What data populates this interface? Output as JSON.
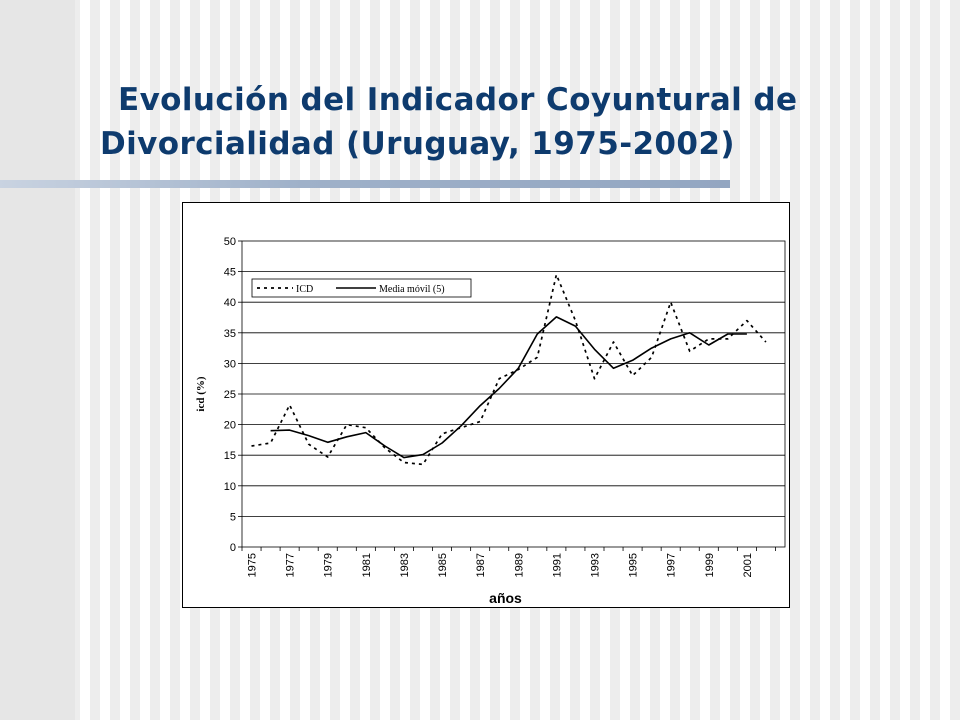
{
  "slide": {
    "title_line1": "Evolución del Indicador Coyuntural de",
    "title_line2": "Divorcialidad (Uruguay, 1975-2002)",
    "title_color": "#0e3b6e"
  },
  "chart_data": {
    "type": "line",
    "xlabel": "años",
    "ylabel": "icd (%)",
    "ylim": [
      0,
      50
    ],
    "yticks": [
      0,
      5,
      10,
      15,
      20,
      25,
      30,
      35,
      40,
      45,
      50
    ],
    "xticks": [
      "1975",
      "1977",
      "1979",
      "1981",
      "1983",
      "1985",
      "1987",
      "1989",
      "1991",
      "1993",
      "1995",
      "1997",
      "1999",
      "2001"
    ],
    "grid": "horizontal",
    "legend": "top-left",
    "x": [
      1975,
      1976,
      1977,
      1978,
      1979,
      1980,
      1981,
      1982,
      1983,
      1984,
      1985,
      1986,
      1987,
      1988,
      1989,
      1990,
      1991,
      1992,
      1993,
      1994,
      1995,
      1996,
      1997,
      1998,
      1999,
      2000,
      2001,
      2002
    ],
    "series": [
      {
        "name": "ICD",
        "style": "dashed",
        "values": [
          16.5,
          17.0,
          23.2,
          16.8,
          14.7,
          20.0,
          19.5,
          16.2,
          13.8,
          13.5,
          18.5,
          19.5,
          20.5,
          27.5,
          29.0,
          31.0,
          44.5,
          37.0,
          27.5,
          33.5,
          28.0,
          31.0,
          40.0,
          32.0,
          34.0,
          34.0,
          37.0,
          33.5
        ]
      },
      {
        "name": "Media móvil (5)",
        "style": "solid",
        "values": [
          null,
          19.0,
          19.1,
          18.2,
          17.1,
          18.0,
          18.7,
          16.5,
          14.6,
          15.1,
          17.0,
          19.8,
          23.1,
          25.9,
          29.2,
          34.8,
          37.6,
          36.1,
          32.3,
          29.2,
          30.5,
          32.5,
          34.0,
          35.0,
          33.0,
          34.8,
          34.8,
          null
        ]
      }
    ]
  }
}
